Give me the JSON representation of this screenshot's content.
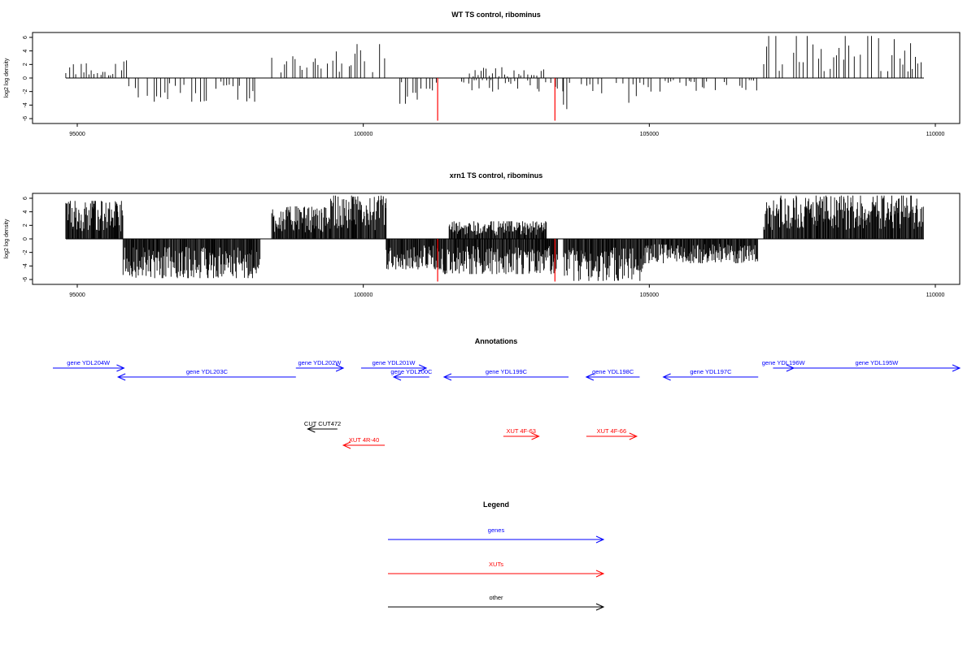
{
  "colors": {
    "bars": "#000000",
    "highlight": "#ff0000",
    "genes": "#0000ff",
    "xuts": "#ff0000",
    "other": "#000000"
  },
  "chart_data": [
    {
      "type": "bar",
      "title": "WT TS control, ribominus",
      "ylabel": "log2 log density",
      "xlabel": "",
      "xlim": [
        94700,
        110000
      ],
      "ylim": [
        -6.5,
        7
      ],
      "xticks": [
        95000,
        100000,
        105000,
        110000
      ],
      "yticks": [
        6,
        4,
        2,
        0,
        -2,
        -4,
        -6
      ],
      "grid": false,
      "density": "sparse",
      "segments": [
        {
          "start": 94800,
          "end": 95900,
          "sign": 1,
          "max": 2.6
        },
        {
          "start": 95900,
          "end": 98200,
          "sign": -1,
          "max": 3.5
        },
        {
          "start": 98400,
          "end": 99300,
          "sign": 1,
          "max": 3.2
        },
        {
          "start": 99300,
          "end": 100400,
          "sign": 1,
          "max": 5.0
        },
        {
          "start": 100500,
          "end": 101400,
          "sign": -1,
          "max": 3.8
        },
        {
          "start": 101600,
          "end": 103500,
          "sign": -1,
          "max": 2.0
        },
        {
          "start": 101800,
          "end": 103200,
          "sign": 1,
          "max": 1.6
        },
        {
          "start": 103500,
          "end": 104900,
          "sign": -1,
          "max": 4.6
        },
        {
          "start": 104900,
          "end": 106900,
          "sign": -1,
          "max": 2.0
        },
        {
          "start": 107000,
          "end": 109800,
          "sign": 1,
          "max": 6.2
        }
      ],
      "highlighted": [
        {
          "x": 101300,
          "y": -6.3
        },
        {
          "x": 103350,
          "y": -6.3
        }
      ]
    },
    {
      "type": "bar",
      "title": "xrn1 TS control, ribominus",
      "ylabel": "log2 log density",
      "xlabel": "",
      "xlim": [
        94700,
        110000
      ],
      "ylim": [
        -6.5,
        7
      ],
      "xticks": [
        95000,
        100000,
        105000,
        110000
      ],
      "yticks": [
        6,
        4,
        2,
        0,
        -2,
        -4,
        -6
      ],
      "grid": false,
      "density": "dense",
      "segments": [
        {
          "start": 94800,
          "end": 95800,
          "sign": 1,
          "max": 5.6
        },
        {
          "start": 95800,
          "end": 98200,
          "sign": -1,
          "max": 5.8
        },
        {
          "start": 98400,
          "end": 99400,
          "sign": 1,
          "max": 4.8
        },
        {
          "start": 99400,
          "end": 100400,
          "sign": 1,
          "max": 6.4
        },
        {
          "start": 100400,
          "end": 101400,
          "sign": -1,
          "max": 4.5
        },
        {
          "start": 101400,
          "end": 103400,
          "sign": -1,
          "max": 5.2
        },
        {
          "start": 101500,
          "end": 103200,
          "sign": 1,
          "max": 2.6
        },
        {
          "start": 103500,
          "end": 104900,
          "sign": -1,
          "max": 6.2
        },
        {
          "start": 104900,
          "end": 106900,
          "sign": -1,
          "max": 3.6
        },
        {
          "start": 107000,
          "end": 109800,
          "sign": 1,
          "max": 6.4
        }
      ],
      "highlighted": [
        {
          "x": 101300,
          "y": -6.3
        },
        {
          "x": 103350,
          "y": -6.3
        }
      ]
    }
  ],
  "annotations": {
    "title": "Annotations",
    "xlim": [
      94700,
      110000
    ],
    "items": [
      {
        "label": "gene YDL204W",
        "start": 94700,
        "end": 95900,
        "strand": "+",
        "type": "genes",
        "row": 0
      },
      {
        "label": "gene YDL203C",
        "start": 95800,
        "end": 98800,
        "strand": "-",
        "type": "genes",
        "row": 1
      },
      {
        "label": "gene YDL202W",
        "start": 98800,
        "end": 99600,
        "strand": "+",
        "type": "genes",
        "row": 0
      },
      {
        "label": "gene YDL201W",
        "start": 99900,
        "end": 101000,
        "strand": "+",
        "type": "genes",
        "row": 0
      },
      {
        "label": "gene YDL200C",
        "start": 100450,
        "end": 101050,
        "strand": "-",
        "type": "genes",
        "row": 1
      },
      {
        "label": "gene YDL199C",
        "start": 101300,
        "end": 103400,
        "strand": "-",
        "type": "genes",
        "row": 1
      },
      {
        "label": "gene YDL198C",
        "start": 103700,
        "end": 104600,
        "strand": "-",
        "type": "genes",
        "row": 1
      },
      {
        "label": "gene YDL197C",
        "start": 105000,
        "end": 106600,
        "strand": "-",
        "type": "genes",
        "row": 1
      },
      {
        "label": "gene YDL196W",
        "start": 106850,
        "end": 107200,
        "strand": "+",
        "type": "genes",
        "row": 0
      },
      {
        "label": "gene YDL195W",
        "start": 107200,
        "end": 110000,
        "strand": "+",
        "type": "genes",
        "row": 0
      },
      {
        "label": "CUT CUT472",
        "start": 99000,
        "end": 99500,
        "strand": "-",
        "type": "other",
        "row": 2
      },
      {
        "label": "XUT 4R-40",
        "start": 99600,
        "end": 100300,
        "strand": "-",
        "type": "xuts",
        "row": 4
      },
      {
        "label": "XUT 4F-63",
        "start": 102300,
        "end": 102900,
        "strand": "+",
        "type": "xuts",
        "row": 3
      },
      {
        "label": "XUT 4F-66",
        "start": 103700,
        "end": 104550,
        "strand": "+",
        "type": "xuts",
        "row": 3
      }
    ]
  },
  "legend": {
    "title": "Legend",
    "entries": [
      {
        "label": "genes",
        "type": "genes"
      },
      {
        "label": "XUTs",
        "type": "xuts"
      },
      {
        "label": "other",
        "type": "other"
      }
    ]
  }
}
